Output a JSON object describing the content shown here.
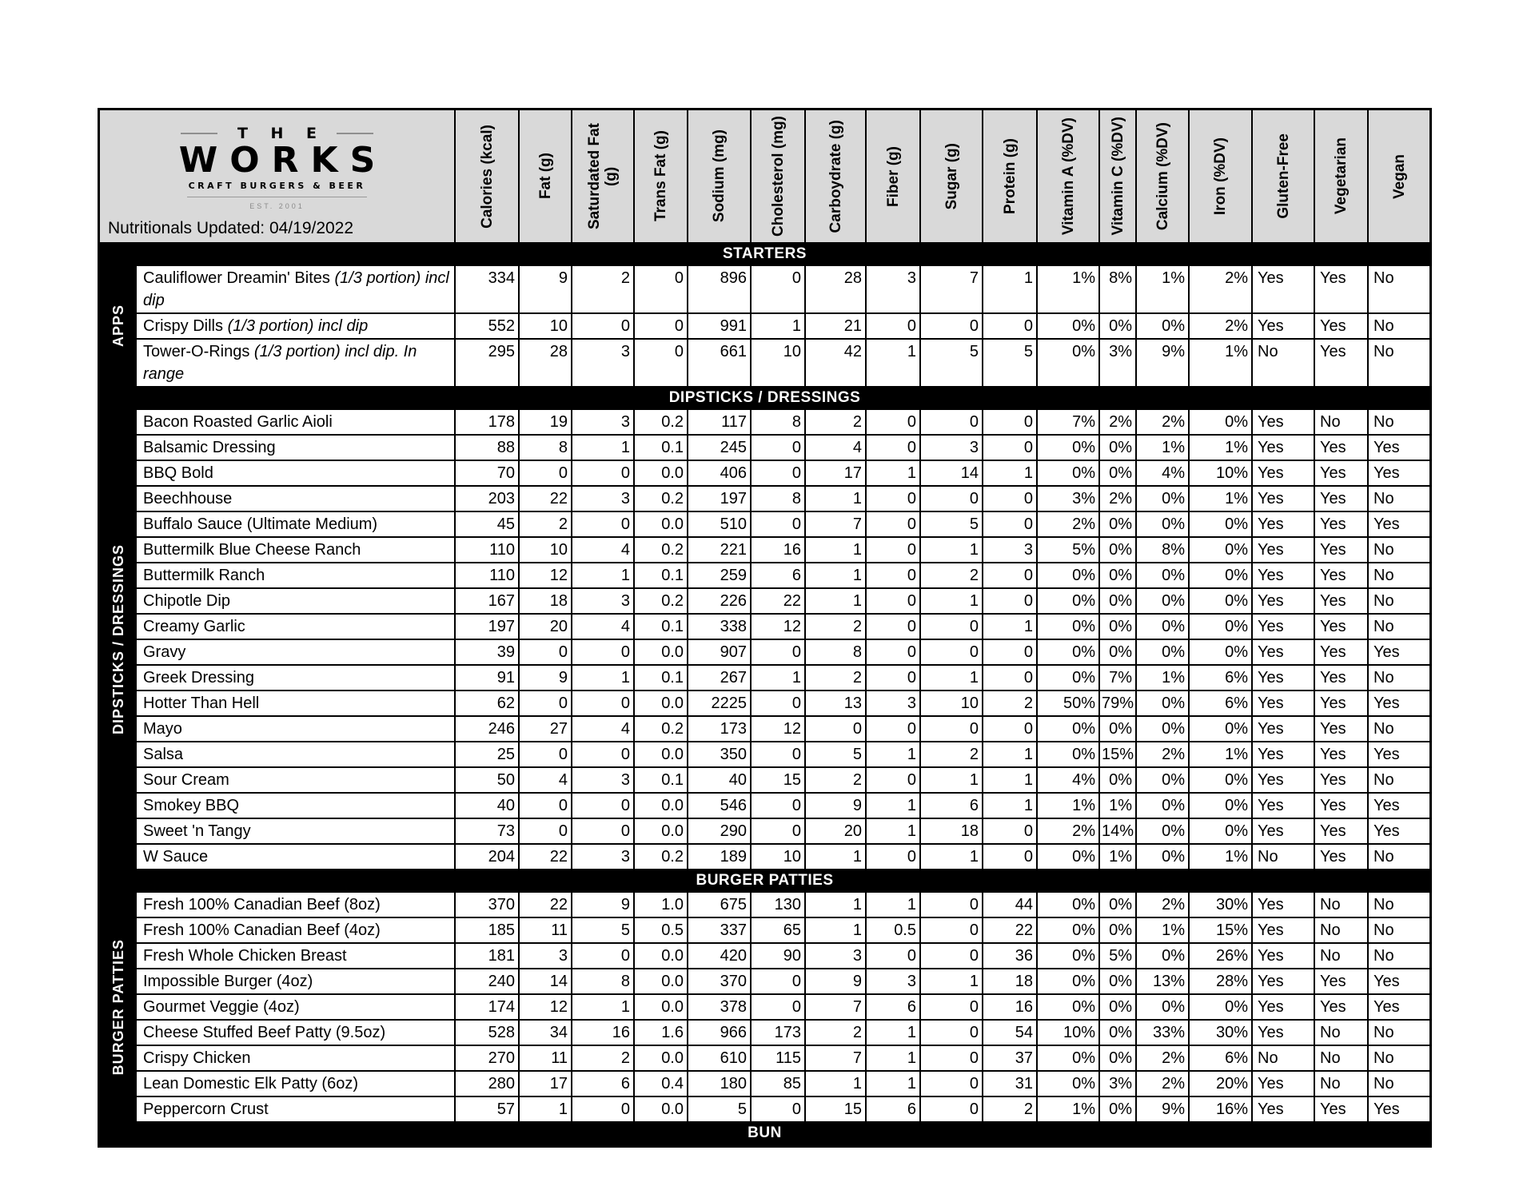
{
  "colors": {
    "header_bg": "#d9d9d9",
    "section_bar_bg": "#000000",
    "section_bar_text": "#ffffff",
    "row_bg": "#ffffff"
  },
  "header": {
    "brand_top": "T H E",
    "brand_name": "WORKS",
    "brand_tagline": "CRAFT BURGERS & BEER",
    "brand_est": "EST. 2001",
    "updated": "Nutritionals Updated: 04/19/2022"
  },
  "columns": [
    "Calories (kcal)",
    "Fat (g)",
    "Saturdated Fat\n(g)",
    "Trans Fat (g)",
    "Sodium (mg)",
    "Cholesterol (mg)",
    "Carboydrate (g)",
    "Fiber (g)",
    "Sugar (g)",
    "Protein (g)",
    "Vitamin A (%DV)",
    "Vitamin C (%DV)",
    "Calcium (%DV)",
    "Iron (%DV)",
    "Gluten-Free",
    "Vegetarian",
    "Vegan"
  ],
  "sections": [
    {
      "title": "STARTERS",
      "side_label": "APPS",
      "rows": [
        {
          "name": "Cauliflower Dreamin' Bites",
          "note": "(1/3 portion) incl dip",
          "values": [
            "334",
            "9",
            "2",
            "0",
            "896",
            "0",
            "28",
            "3",
            "7",
            "1",
            "1%",
            "8%",
            "1%",
            "2%",
            "Yes",
            "Yes",
            "No"
          ]
        },
        {
          "name": "Crispy Dills",
          "note": "(1/3 portion) incl dip",
          "values": [
            "552",
            "10",
            "0",
            "0",
            "991",
            "1",
            "21",
            "0",
            "0",
            "0",
            "0%",
            "0%",
            "0%",
            "2%",
            "Yes",
            "Yes",
            "No"
          ]
        },
        {
          "name": "Tower-O-Rings",
          "note": "(1/3 portion) incl dip. In range",
          "values": [
            "295",
            "28",
            "3",
            "0",
            "661",
            "10",
            "42",
            "1",
            "5",
            "5",
            "0%",
            "3%",
            "9%",
            "1%",
            "No",
            "Yes",
            "No"
          ]
        }
      ]
    },
    {
      "title": "DIPSTICKS / DRESSINGS",
      "side_label": "DIPSTICKS / DRESSINGS",
      "rows": [
        {
          "name": "Bacon Roasted Garlic Aioli",
          "note": "",
          "values": [
            "178",
            "19",
            "3",
            "0.2",
            "117",
            "8",
            "2",
            "0",
            "0",
            "0",
            "7%",
            "2%",
            "2%",
            "0%",
            "Yes",
            "No",
            "No"
          ]
        },
        {
          "name": "Balsamic Dressing",
          "note": "",
          "values": [
            "88",
            "8",
            "1",
            "0.1",
            "245",
            "0",
            "4",
            "0",
            "3",
            "0",
            "0%",
            "0%",
            "1%",
            "1%",
            "Yes",
            "Yes",
            "Yes"
          ]
        },
        {
          "name": "BBQ Bold",
          "note": "",
          "values": [
            "70",
            "0",
            "0",
            "0.0",
            "406",
            "0",
            "17",
            "1",
            "14",
            "1",
            "0%",
            "0%",
            "4%",
            "10%",
            "Yes",
            "Yes",
            "Yes"
          ]
        },
        {
          "name": "Beechhouse",
          "note": "",
          "values": [
            "203",
            "22",
            "3",
            "0.2",
            "197",
            "8",
            "1",
            "0",
            "0",
            "0",
            "3%",
            "2%",
            "0%",
            "1%",
            "Yes",
            "Yes",
            "No"
          ]
        },
        {
          "name": "Buffalo Sauce (Ultimate Medium)",
          "note": "",
          "values": [
            "45",
            "2",
            "0",
            "0.0",
            "510",
            "0",
            "7",
            "0",
            "5",
            "0",
            "2%",
            "0%",
            "0%",
            "0%",
            "Yes",
            "Yes",
            "Yes"
          ]
        },
        {
          "name": "Buttermilk Blue Cheese Ranch",
          "note": "",
          "values": [
            "110",
            "10",
            "4",
            "0.2",
            "221",
            "16",
            "1",
            "0",
            "1",
            "3",
            "5%",
            "0%",
            "8%",
            "0%",
            "Yes",
            "Yes",
            "No"
          ]
        },
        {
          "name": "Buttermilk Ranch",
          "note": "",
          "values": [
            "110",
            "12",
            "1",
            "0.1",
            "259",
            "6",
            "1",
            "0",
            "2",
            "0",
            "0%",
            "0%",
            "0%",
            "0%",
            "Yes",
            "Yes",
            "No"
          ]
        },
        {
          "name": "Chipotle Dip",
          "note": "",
          "values": [
            "167",
            "18",
            "3",
            "0.2",
            "226",
            "22",
            "1",
            "0",
            "1",
            "0",
            "0%",
            "0%",
            "0%",
            "0%",
            "Yes",
            "Yes",
            "No"
          ]
        },
        {
          "name": "Creamy Garlic",
          "note": "",
          "values": [
            "197",
            "20",
            "4",
            "0.1",
            "338",
            "12",
            "2",
            "0",
            "0",
            "1",
            "0%",
            "0%",
            "0%",
            "0%",
            "Yes",
            "Yes",
            "No"
          ]
        },
        {
          "name": "Gravy",
          "note": "",
          "values": [
            "39",
            "0",
            "0",
            "0.0",
            "907",
            "0",
            "8",
            "0",
            "0",
            "0",
            "0%",
            "0%",
            "0%",
            "0%",
            "Yes",
            "Yes",
            "Yes"
          ]
        },
        {
          "name": "Greek Dressing",
          "note": "",
          "values": [
            "91",
            "9",
            "1",
            "0.1",
            "267",
            "1",
            "2",
            "0",
            "1",
            "0",
            "0%",
            "7%",
            "1%",
            "6%",
            "Yes",
            "Yes",
            "No"
          ]
        },
        {
          "name": "Hotter Than Hell",
          "note": "",
          "values": [
            "62",
            "0",
            "0",
            "0.0",
            "2225",
            "0",
            "13",
            "3",
            "10",
            "2",
            "50%",
            "79%",
            "0%",
            "6%",
            "Yes",
            "Yes",
            "Yes"
          ]
        },
        {
          "name": "Mayo",
          "note": "",
          "values": [
            "246",
            "27",
            "4",
            "0.2",
            "173",
            "12",
            "0",
            "0",
            "0",
            "0",
            "0%",
            "0%",
            "0%",
            "0%",
            "Yes",
            "Yes",
            "No"
          ]
        },
        {
          "name": "Salsa",
          "note": "",
          "values": [
            "25",
            "0",
            "0",
            "0.0",
            "350",
            "0",
            "5",
            "1",
            "2",
            "1",
            "0%",
            "15%",
            "2%",
            "1%",
            "Yes",
            "Yes",
            "Yes"
          ]
        },
        {
          "name": "Sour Cream",
          "note": "",
          "values": [
            "50",
            "4",
            "3",
            "0.1",
            "40",
            "15",
            "2",
            "0",
            "1",
            "1",
            "4%",
            "0%",
            "0%",
            "0%",
            "Yes",
            "Yes",
            "No"
          ]
        },
        {
          "name": "Smokey BBQ",
          "note": "",
          "values": [
            "40",
            "0",
            "0",
            "0.0",
            "546",
            "0",
            "9",
            "1",
            "6",
            "1",
            "1%",
            "1%",
            "0%",
            "0%",
            "Yes",
            "Yes",
            "Yes"
          ]
        },
        {
          "name": "Sweet 'n Tangy",
          "note": "",
          "values": [
            "73",
            "0",
            "0",
            "0.0",
            "290",
            "0",
            "20",
            "1",
            "18",
            "0",
            "2%",
            "14%",
            "0%",
            "0%",
            "Yes",
            "Yes",
            "Yes"
          ]
        },
        {
          "name": "W Sauce",
          "note": "",
          "values": [
            "204",
            "22",
            "3",
            "0.2",
            "189",
            "10",
            "1",
            "0",
            "1",
            "0",
            "0%",
            "1%",
            "0%",
            "1%",
            "No",
            "Yes",
            "No"
          ]
        }
      ]
    },
    {
      "title": "BURGER PATTIES",
      "side_label": "BURGER PATTIES",
      "rows": [
        {
          "name": "Fresh 100% Canadian Beef (8oz)",
          "note": "",
          "values": [
            "370",
            "22",
            "9",
            "1.0",
            "675",
            "130",
            "1",
            "1",
            "0",
            "44",
            "0%",
            "0%",
            "2%",
            "30%",
            "Yes",
            "No",
            "No"
          ]
        },
        {
          "name": "Fresh 100% Canadian Beef (4oz)",
          "note": "",
          "values": [
            "185",
            "11",
            "5",
            "0.5",
            "337",
            "65",
            "1",
            "0.5",
            "0",
            "22",
            "0%",
            "0%",
            "1%",
            "15%",
            "Yes",
            "No",
            "No"
          ]
        },
        {
          "name": "Fresh Whole Chicken Breast",
          "note": "",
          "values": [
            "181",
            "3",
            "0",
            "0.0",
            "420",
            "90",
            "3",
            "0",
            "0",
            "36",
            "0%",
            "5%",
            "0%",
            "26%",
            "Yes",
            "No",
            "No"
          ]
        },
        {
          "name": "Impossible Burger  (4oz)",
          "note": "",
          "values": [
            "240",
            "14",
            "8",
            "0.0",
            "370",
            "0",
            "9",
            "3",
            "1",
            "18",
            "0%",
            "0%",
            "13%",
            "28%",
            "Yes",
            "Yes",
            "Yes"
          ]
        },
        {
          "name": "Gourmet Veggie (4oz)",
          "note": "",
          "values": [
            "174",
            "12",
            "1",
            "0.0",
            "378",
            "0",
            "7",
            "6",
            "0",
            "16",
            "0%",
            "0%",
            "0%",
            "0%",
            "Yes",
            "Yes",
            "Yes"
          ]
        },
        {
          "name": "Cheese Stuffed Beef Patty (9.5oz)",
          "note": "",
          "values": [
            "528",
            "34",
            "16",
            "1.6",
            "966",
            "173",
            "2",
            "1",
            "0",
            "54",
            "10%",
            "0%",
            "33%",
            "30%",
            "Yes",
            "No",
            "No"
          ]
        },
        {
          "name": "Crispy Chicken",
          "note": "",
          "values": [
            "270",
            "11",
            "2",
            "0.0",
            "610",
            "115",
            "7",
            "1",
            "0",
            "37",
            "0%",
            "0%",
            "2%",
            "6%",
            "No",
            "No",
            "No"
          ]
        },
        {
          "name": "Lean Domestic Elk Patty (6oz)",
          "note": "",
          "values": [
            "280",
            "17",
            "6",
            "0.4",
            "180",
            "85",
            "1",
            "1",
            "0",
            "31",
            "0%",
            "3%",
            "2%",
            "20%",
            "Yes",
            "No",
            "No"
          ]
        },
        {
          "name": "Peppercorn Crust",
          "note": "",
          "values": [
            "57",
            "1",
            "0",
            "0.0",
            "5",
            "0",
            "15",
            "6",
            "0",
            "2",
            "1%",
            "0%",
            "9%",
            "16%",
            "Yes",
            "Yes",
            "Yes"
          ]
        }
      ]
    },
    {
      "title": "BUN",
      "side_label": "",
      "rows": []
    }
  ]
}
